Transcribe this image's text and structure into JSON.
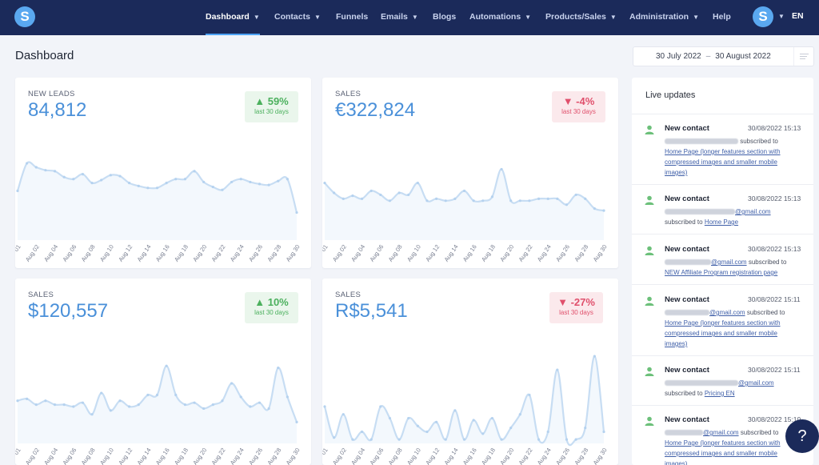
{
  "nav": {
    "logo": "S",
    "items": [
      {
        "label": "Dashboard",
        "chevron": true,
        "active": true
      },
      {
        "label": "Contacts",
        "chevron": true
      },
      {
        "label": "Funnels",
        "chevron": false
      },
      {
        "label": "Emails",
        "chevron": true
      },
      {
        "label": "Blogs",
        "chevron": false
      },
      {
        "label": "Automations",
        "chevron": true
      },
      {
        "label": "Products/Sales",
        "chevron": true
      },
      {
        "label": "Administration",
        "chevron": true
      },
      {
        "label": "Help",
        "chevron": false
      }
    ],
    "avatar": "S",
    "language": "EN"
  },
  "page": {
    "title": "Dashboard",
    "date_from": "30 July 2022",
    "date_sep": "–",
    "date_to": "30 August 2022"
  },
  "x_ticks": [
    "01",
    "Aug 02",
    "Aug 04",
    "Aug 06",
    "Aug 08",
    "Aug 10",
    "Aug 12",
    "Aug 14",
    "Aug 16",
    "Aug 18",
    "Aug 20",
    "Aug 22",
    "Aug 24",
    "Aug 26",
    "Aug 28",
    "Aug 30"
  ],
  "cards": [
    {
      "label": "NEW LEADS",
      "value": "84,812",
      "change": "59%",
      "direction": "up",
      "period": "last 30 days",
      "series": [
        50,
        78,
        74,
        71,
        70,
        64,
        62,
        67,
        58,
        61,
        66,
        65,
        58,
        55,
        53,
        53,
        58,
        62,
        62,
        70,
        59,
        54,
        51,
        59,
        62,
        59,
        57,
        56,
        60,
        62,
        28
      ]
    },
    {
      "label": "SALES",
      "value": "€322,824",
      "change": "-4%",
      "direction": "down",
      "period": "last 30 days",
      "series": [
        58,
        48,
        42,
        45,
        42,
        50,
        46,
        40,
        48,
        46,
        58,
        40,
        42,
        40,
        42,
        50,
        40,
        40,
        44,
        72,
        40,
        40,
        40,
        42,
        42,
        42,
        36,
        46,
        42,
        32,
        30
      ]
    },
    {
      "label": "SALES",
      "value": "$120,557",
      "change": "10%",
      "direction": "up",
      "period": "last 30 days",
      "series": [
        44,
        46,
        40,
        44,
        40,
        40,
        38,
        42,
        30,
        52,
        34,
        44,
        38,
        40,
        50,
        50,
        80,
        50,
        40,
        42,
        36,
        40,
        44,
        62,
        48,
        38,
        42,
        36,
        78,
        48,
        22
      ]
    },
    {
      "label": "SALES",
      "value": "R$5,541",
      "change": "-27%",
      "direction": "down",
      "period": "last 30 days",
      "series": [
        38,
        6,
        30,
        4,
        12,
        4,
        38,
        26,
        4,
        26,
        18,
        12,
        22,
        4,
        34,
        4,
        24,
        10,
        26,
        4,
        16,
        30,
        50,
        4,
        12,
        76,
        4,
        4,
        16,
        90,
        12
      ]
    }
  ],
  "live": {
    "title": "Live updates",
    "updates": [
      {
        "title": "New contact",
        "time": "30/08/2022 15:13",
        "email_suffix": "",
        "middle": "subscribed to",
        "link": "Home Page (longer features section with compressed images and smaller mobile images)"
      },
      {
        "title": "New contact",
        "time": "30/08/2022 15:13",
        "email_suffix": "@gmail.com",
        "middle": "subscribed to",
        "link": "Home Page"
      },
      {
        "title": "New contact",
        "time": "30/08/2022 15:13",
        "email_suffix": "@gmail.com",
        "middle": "subscribed to",
        "link": "NEW Affiliate Program registration page"
      },
      {
        "title": "New contact",
        "time": "30/08/2022 15:11",
        "email_suffix": "@gmail.com",
        "middle": "subscribed to",
        "link": "Home Page (longer features section with compressed images and smaller mobile images)"
      },
      {
        "title": "New contact",
        "time": "30/08/2022 15:11",
        "email_suffix": "@gmail.com",
        "middle": "subscribed to",
        "link": "Pricing EN"
      },
      {
        "title": "New contact",
        "time": "30/08/2022 15:10",
        "email_suffix": "@gmail.com",
        "middle": "subscribed to",
        "link": "Home Page (longer features section with compressed images and smaller mobile images)"
      }
    ]
  },
  "help": {
    "label": "?"
  },
  "colors": {
    "nav_bg": "#1b2a5a",
    "accent": "#4a90d9",
    "line": "#c7ddf3",
    "area": "#f3f8fd",
    "up": "#4bb05d",
    "down": "#e0506c"
  }
}
